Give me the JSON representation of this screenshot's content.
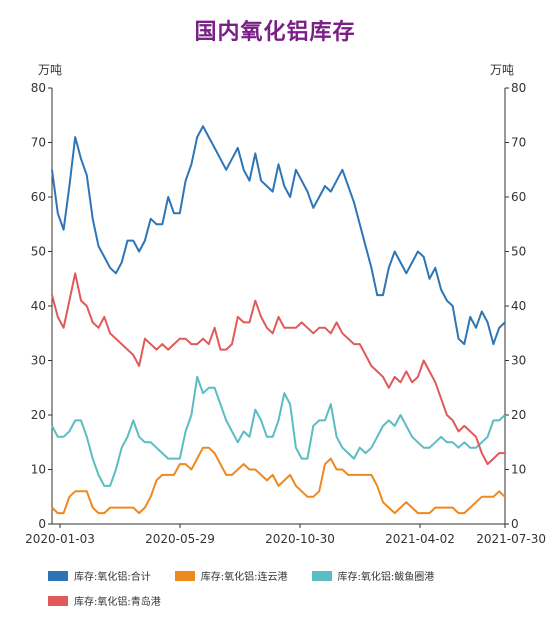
{
  "chart_data": {
    "type": "line",
    "title": "国内氧化铝库存",
    "ylabel_left": "万吨",
    "ylabel_right": "万吨",
    "ylim": [
      0,
      80
    ],
    "yticks": [
      0,
      10,
      20,
      30,
      40,
      50,
      60,
      70,
      80
    ],
    "x_tick_labels": [
      "2020-01-03",
      "2020-05-29",
      "2020-10-30",
      "2021-04-02",
      "2021-07-30"
    ],
    "legend_position": "bottom",
    "grid": false,
    "series": [
      {
        "name": "库存:氧化铝:合计",
        "color": "#2e75b6",
        "values": [
          65,
          57,
          54,
          62,
          71,
          67,
          64,
          56,
          51,
          49,
          47,
          46,
          48,
          52,
          52,
          50,
          52,
          56,
          55,
          55,
          60,
          57,
          57,
          63,
          66,
          71,
          73,
          71,
          69,
          67,
          65,
          67,
          69,
          65,
          63,
          68,
          63,
          62,
          61,
          66,
          62,
          60,
          65,
          63,
          61,
          58,
          60,
          62,
          61,
          63,
          65,
          62,
          59,
          55,
          51,
          47,
          42,
          42,
          47,
          50,
          48,
          46,
          48,
          50,
          49,
          45,
          47,
          43,
          41,
          40,
          34,
          33,
          38,
          36,
          39,
          37,
          33,
          36,
          37
        ]
      },
      {
        "name": "库存:氧化铝:连云港",
        "color": "#ed8a1f",
        "values": [
          3,
          2,
          2,
          5,
          6,
          6,
          6,
          3,
          2,
          2,
          3,
          3,
          3,
          3,
          3,
          2,
          3,
          5,
          8,
          9,
          9,
          9,
          11,
          11,
          10,
          12,
          14,
          14,
          13,
          11,
          9,
          9,
          10,
          11,
          10,
          10,
          9,
          8,
          9,
          7,
          8,
          9,
          7,
          6,
          5,
          5,
          6,
          11,
          12,
          10,
          10,
          9,
          9,
          9,
          9,
          9,
          7,
          4,
          3,
          2,
          3,
          4,
          3,
          2,
          2,
          2,
          3,
          3,
          3,
          3,
          2,
          2,
          3,
          4,
          5,
          5,
          5,
          6,
          5
        ]
      },
      {
        "name": "库存:氧化铝:鲅鱼圈港",
        "color": "#5bbcc4",
        "values": [
          18,
          16,
          16,
          17,
          19,
          19,
          16,
          12,
          9,
          7,
          7,
          10,
          14,
          16,
          19,
          16,
          15,
          15,
          14,
          13,
          12,
          12,
          12,
          17,
          20,
          27,
          24,
          25,
          25,
          22,
          19,
          17,
          15,
          17,
          16,
          21,
          19,
          16,
          16,
          19,
          24,
          22,
          14,
          12,
          12,
          18,
          19,
          19,
          22,
          16,
          14,
          13,
          12,
          14,
          13,
          14,
          16,
          18,
          19,
          18,
          20,
          18,
          16,
          15,
          14,
          14,
          15,
          16,
          15,
          15,
          14,
          15,
          14,
          14,
          15,
          16,
          19,
          19,
          20
        ]
      },
      {
        "name": "库存:氧化铝:青岛港",
        "color": "#e05a5a",
        "values": [
          42,
          38,
          36,
          41,
          46,
          41,
          40,
          37,
          36,
          38,
          35,
          34,
          33,
          32,
          31,
          29,
          34,
          33,
          32,
          33,
          32,
          33,
          34,
          34,
          33,
          33,
          34,
          33,
          36,
          32,
          32,
          33,
          38,
          37,
          37,
          41,
          38,
          36,
          35,
          38,
          36,
          36,
          36,
          37,
          36,
          35,
          36,
          36,
          35,
          37,
          35,
          34,
          33,
          33,
          31,
          29,
          28,
          27,
          25,
          27,
          26,
          28,
          26,
          27,
          30,
          28,
          26,
          23,
          20,
          19,
          17,
          18,
          17,
          16,
          13,
          11,
          12,
          13,
          13
        ]
      }
    ]
  }
}
